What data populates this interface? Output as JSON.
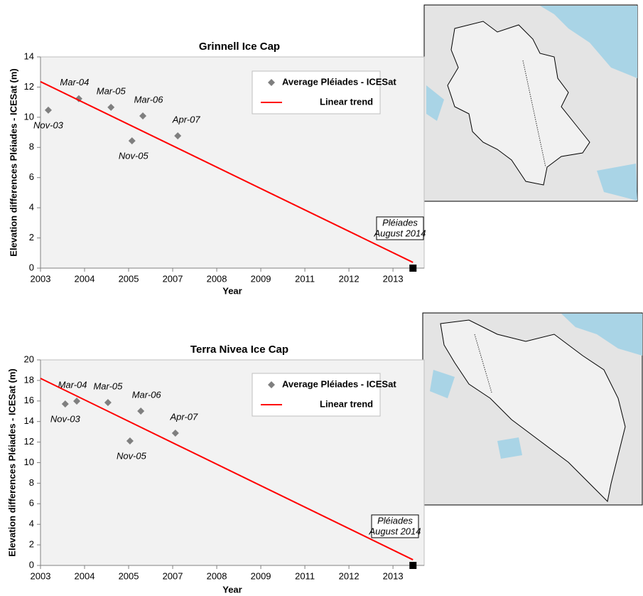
{
  "chart_data": [
    {
      "type": "scatter",
      "title": "Grinnell Ice Cap",
      "x_label": "Year",
      "y_label": "Elevation differences Pléiades - ICESat (m)",
      "xlim": [
        2002.75,
        2014.07
      ],
      "ylim": [
        0,
        14
      ],
      "xticks": [
        {
          "value": 2002.75,
          "label": "2003"
        },
        {
          "value": 2004.05,
          "label": "2004"
        },
        {
          "value": 2005.35,
          "label": "2005"
        },
        {
          "value": 2006.65,
          "label": "2007"
        },
        {
          "value": 2007.95,
          "label": "2008"
        },
        {
          "value": 2009.25,
          "label": "2009"
        },
        {
          "value": 2010.55,
          "label": "2011"
        },
        {
          "value": 2011.85,
          "label": "2012"
        },
        {
          "value": 2013.15,
          "label": "2013"
        }
      ],
      "yticks": [
        0,
        2,
        4,
        6,
        8,
        10,
        12,
        14
      ],
      "series": [
        {
          "name": "Average Pléiades - ICESat",
          "color": "#7f7f7f",
          "x": [
            2002.98,
            2003.88,
            2004.83,
            2005.45,
            2005.77,
            2006.8
          ],
          "values": [
            10.47,
            11.23,
            10.66,
            8.44,
            10.09,
            8.77
          ],
          "point_labels": [
            "Nov-03",
            "Mar-04",
            "Mar-05",
            "Nov-05",
            "Mar-06",
            "Apr-07"
          ]
        },
        {
          "name": "Linear trend",
          "color": "#ff0000",
          "x": [
            2002.75,
            2013.74
          ],
          "values": [
            12.36,
            0.38
          ]
        }
      ],
      "marker": {
        "x": 2013.74,
        "y": 0,
        "color": "#000000",
        "label_lines": [
          "Pléiades",
          "August 2014"
        ]
      }
    },
    {
      "type": "scatter",
      "title": "Terra Nivea Ice Cap",
      "x_label": "Year",
      "y_label": "Elevation differences Pléiades - ICESat (m)",
      "xlim": [
        2002.75,
        2014.07
      ],
      "ylim": [
        0,
        20
      ],
      "xticks": [
        {
          "value": 2002.75,
          "label": "2003"
        },
        {
          "value": 2004.05,
          "label": "2004"
        },
        {
          "value": 2005.35,
          "label": "2005"
        },
        {
          "value": 2006.65,
          "label": "2007"
        },
        {
          "value": 2007.95,
          "label": "2008"
        },
        {
          "value": 2009.25,
          "label": "2009"
        },
        {
          "value": 2010.55,
          "label": "2011"
        },
        {
          "value": 2011.85,
          "label": "2012"
        },
        {
          "value": 2013.15,
          "label": "2013"
        }
      ],
      "yticks": [
        0,
        2,
        4,
        6,
        8,
        10,
        12,
        14,
        16,
        18,
        20
      ],
      "series": [
        {
          "name": "Average Pléiades - ICESat",
          "color": "#7f7f7f",
          "x": [
            2003.48,
            2003.82,
            2004.74,
            2005.39,
            2005.71,
            2006.73
          ],
          "values": [
            15.71,
            15.99,
            15.85,
            12.11,
            15.02,
            12.87
          ],
          "point_labels": [
            "Nov-03",
            "Mar-04",
            "Mar-05",
            "Nov-05",
            "Mar-06",
            "Apr-07"
          ]
        },
        {
          "name": "Linear trend",
          "color": "#ff0000",
          "x": [
            2002.75,
            2013.74
          ],
          "values": [
            18.2,
            0.55
          ]
        }
      ],
      "marker": {
        "x": 2013.74,
        "y": 0,
        "color": "#000000",
        "label_lines": [
          "Pléiades",
          "August 2014"
        ]
      }
    }
  ]
}
